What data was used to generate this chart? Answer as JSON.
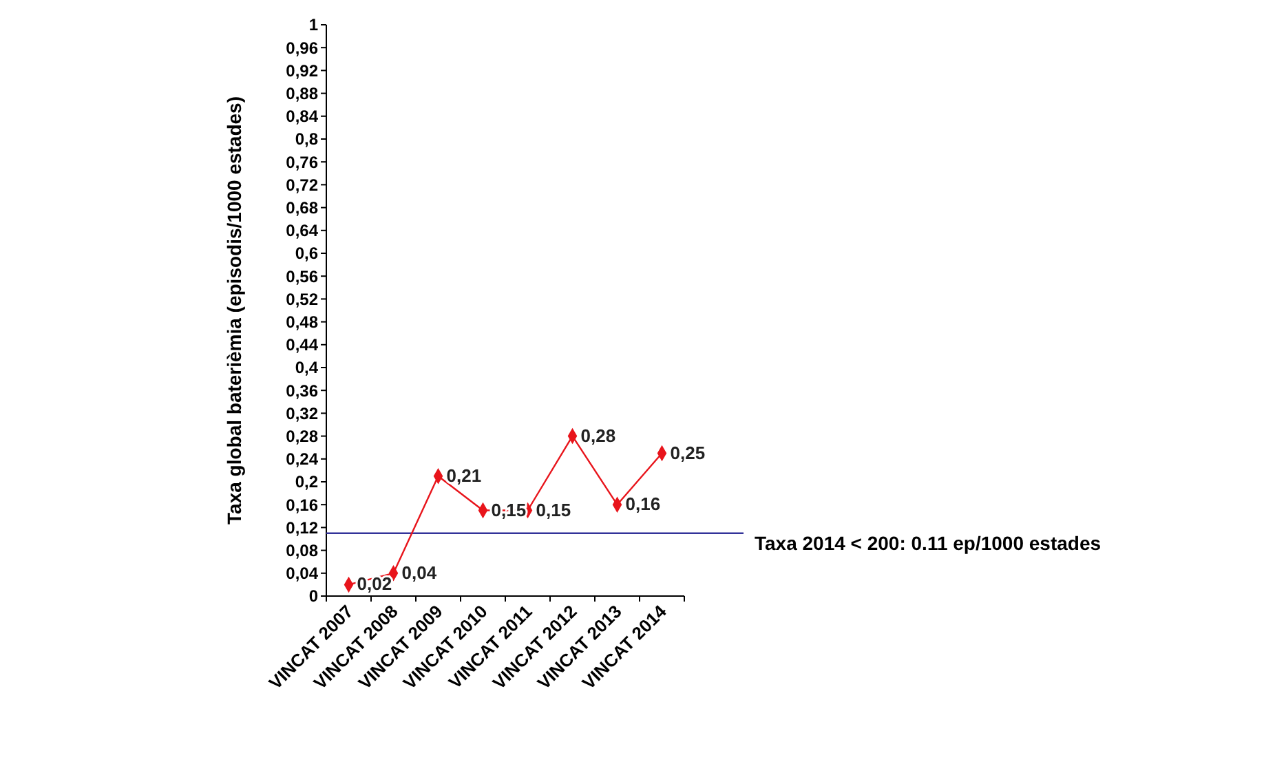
{
  "chart_data": {
    "type": "line",
    "ylabel": "Taxa global baterièmia (episodis/1000 estades)",
    "categories": [
      "VINCAT 2007",
      "VINCAT 2008",
      "VINCAT 2009",
      "VINCAT 2010",
      "VINCAT 2011",
      "VINCAT 2012",
      "VINCAT 2013",
      "VINCAT 2014"
    ],
    "series": [
      {
        "color": "#e8141b",
        "values": [
          0.02,
          0.04,
          0.21,
          0.15,
          0.15,
          0.28,
          0.16,
          0.25
        ],
        "value_labels": [
          "0,02",
          "0,04",
          "0,21",
          "0,15",
          "0,15",
          "0,28",
          "0,16",
          "0,25"
        ]
      }
    ],
    "ylim": [
      0,
      1
    ],
    "yticks": [
      0,
      {
        "value": 0.04,
        "label": "0,04"
      },
      {
        "value": 0.08,
        "label": "0,08"
      },
      {
        "value": 0.12,
        "label": "0,12"
      },
      {
        "value": 0.16,
        "label": "0,16"
      },
      {
        "value": 0.2,
        "label": "0,2"
      },
      {
        "value": 0.24,
        "label": "0,24"
      },
      {
        "value": 0.28,
        "label": "0,28"
      },
      {
        "value": 0.32,
        "label": "0,32"
      },
      {
        "value": 0.36,
        "label": "0,36"
      },
      {
        "value": 0.4,
        "label": "0,4"
      },
      {
        "value": 0.44,
        "label": "0,44"
      },
      {
        "value": 0.48,
        "label": "0,48"
      },
      {
        "value": 0.52,
        "label": "0,52"
      },
      {
        "value": 0.56,
        "label": "0,56"
      },
      {
        "value": 0.6,
        "label": "0,6"
      },
      {
        "value": 0.64,
        "label": "0,64"
      },
      {
        "value": 0.68,
        "label": "0,68"
      },
      {
        "value": 0.72,
        "label": "0,72"
      },
      {
        "value": 0.76,
        "label": "0,76"
      },
      {
        "value": 0.8,
        "label": "0,8"
      },
      {
        "value": 0.84,
        "label": "0,84"
      },
      {
        "value": 0.88,
        "label": "0,88"
      },
      {
        "value": 0.92,
        "label": "0,92"
      },
      {
        "value": 0.96,
        "label": "0,96"
      },
      1
    ],
    "ref_lines": [
      {
        "axis": "y",
        "value": 0.11,
        "label": "Taxa 2014 < 200: 0.11 ep/1000 estades",
        "color": "#333399"
      }
    ],
    "marker": "diamond",
    "grid": false
  }
}
